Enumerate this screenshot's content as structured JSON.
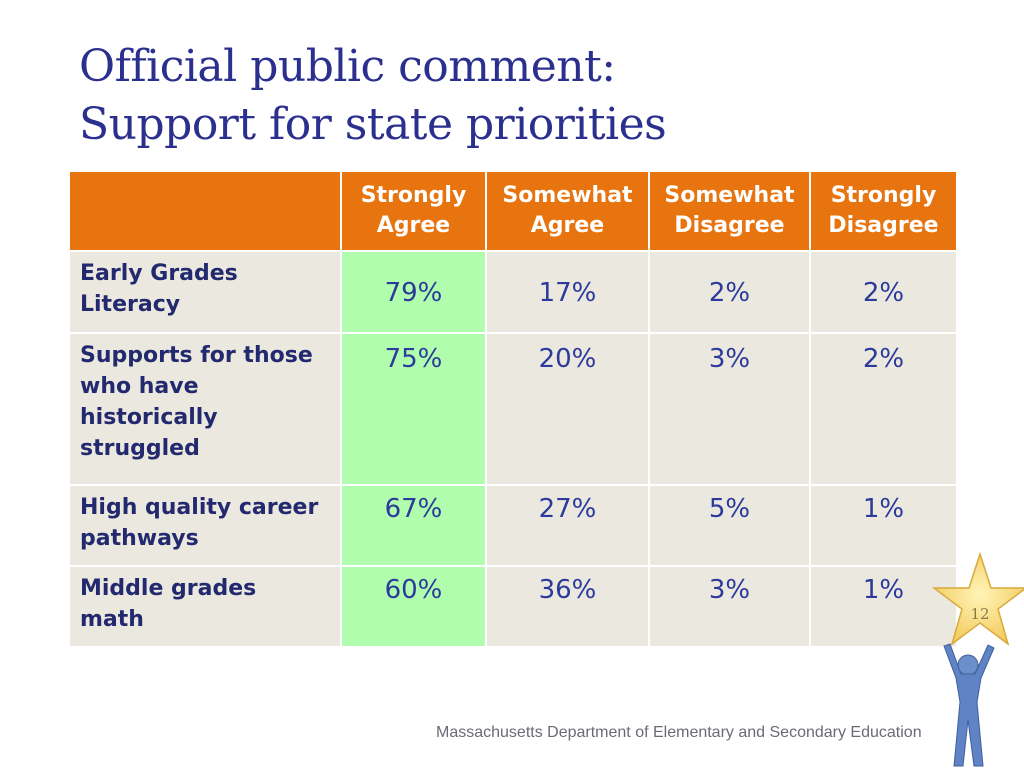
{
  "slide": {
    "title_line1": "Official public comment:",
    "title_line2": "Support for state priorities",
    "page_number": "12",
    "footer": "Massachusetts Department of Elementary and Secondary Education"
  },
  "table": {
    "headers": [
      {
        "line1": "Strongly",
        "line2": "Agree"
      },
      {
        "line1": "Somewhat",
        "line2": "Agree"
      },
      {
        "line1": "Somewhat",
        "line2": "Disagree"
      },
      {
        "line1": "Strongly",
        "line2": "Disagree"
      }
    ],
    "rows": [
      {
        "label_lines": [
          "Early Grades",
          "Literacy",
          "",
          ""
        ],
        "values": [
          "79%",
          "17%",
          "2%",
          "2%"
        ]
      },
      {
        "label_lines": [
          "Supports for those",
          "who have",
          "historically",
          "struggled"
        ],
        "values": [
          "75%",
          "20%",
          "3%",
          "2%"
        ]
      },
      {
        "label_lines": [
          "High quality career",
          "pathways",
          "",
          ""
        ],
        "values": [
          "67%",
          "27%",
          "5%",
          "1%"
        ]
      },
      {
        "label_lines": [
          "Middle grades",
          "math",
          "",
          ""
        ],
        "values": [
          "60%",
          "36%",
          "3%",
          "1%"
        ]
      }
    ]
  },
  "colors": {
    "title": "#2b2f8e",
    "header_bg": "#e8740f",
    "cell_bg": "#ebe8df",
    "highlight_bg": "#b0fdad",
    "value_text": "#2b3a9b"
  },
  "decoration": {
    "icon": "star-person-icon"
  }
}
